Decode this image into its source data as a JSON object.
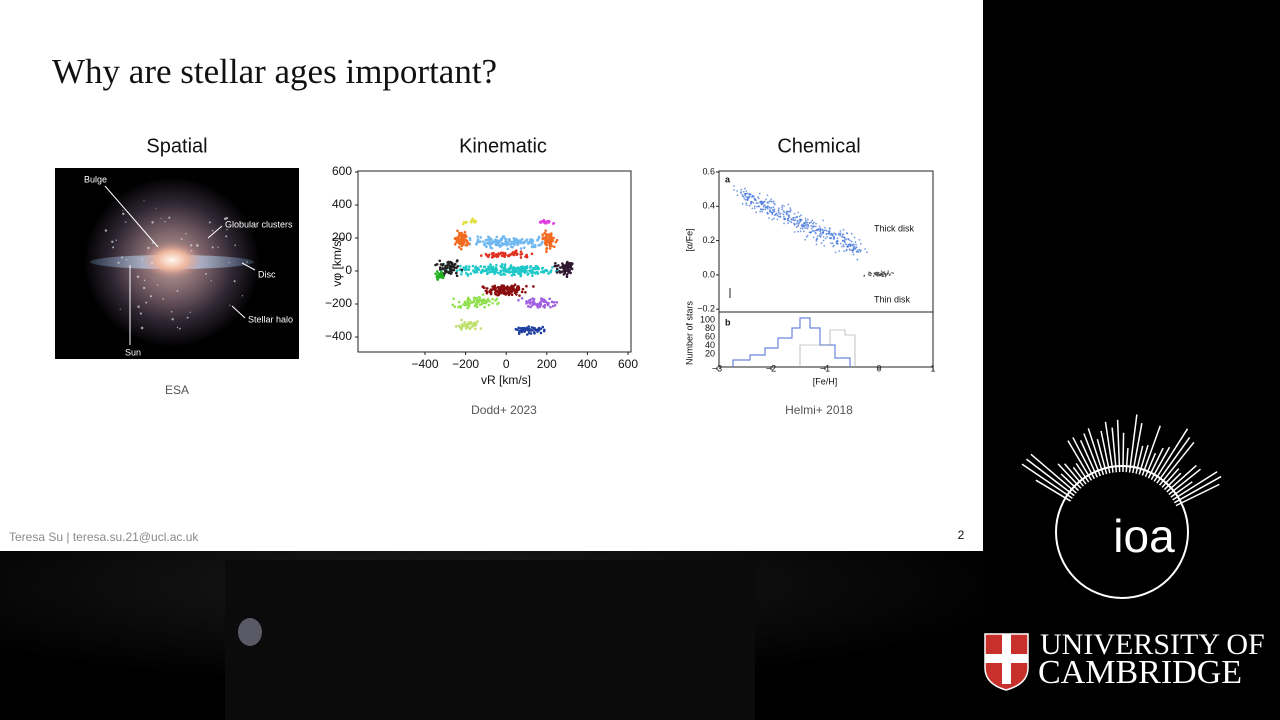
{
  "slide": {
    "title": "Why are stellar ages important?",
    "panels": [
      {
        "heading": "Spatial",
        "caption": "ESA",
        "labels": {
          "bulge": "Bulge",
          "globular": "Globular clusters",
          "disc": "Disc",
          "halo": "Stellar halo",
          "sun": "Sun"
        }
      },
      {
        "heading": "Kinematic",
        "caption": "Dodd+ 2023",
        "y_label": "vφ [km/s]",
        "x_label": "vR [km/s]",
        "yticks": [
          "600",
          "400",
          "200",
          "0",
          "−200",
          "−400"
        ],
        "xticks": [
          "−400",
          "−200",
          "0",
          "200",
          "400",
          "600"
        ]
      },
      {
        "heading": "Chemical",
        "caption": "Helmi+ 2018",
        "panel_a": "a",
        "panel_b": "b",
        "y_label_a": "[α/Fe]",
        "y_label_b": "Number of stars",
        "x_label": "[Fe/H]",
        "yticks_a": [
          "0.6",
          "0.4",
          "0.2",
          "0.0",
          "−0.2"
        ],
        "yticks_b": [
          "100",
          "80",
          "60",
          "40",
          "20"
        ],
        "xticks": [
          "−3",
          "−2",
          "−1",
          "0",
          "1"
        ],
        "thick": "Thick disk",
        "thin": "Thin disk"
      }
    ],
    "footer": "Teresa Su | teresa.su.21@ucl.ac.uk",
    "page_number": "2"
  },
  "logos": {
    "ioa": "ioa",
    "university_1": "UNIVERSITY OF",
    "university_2": "CAMBRIDGE"
  }
}
